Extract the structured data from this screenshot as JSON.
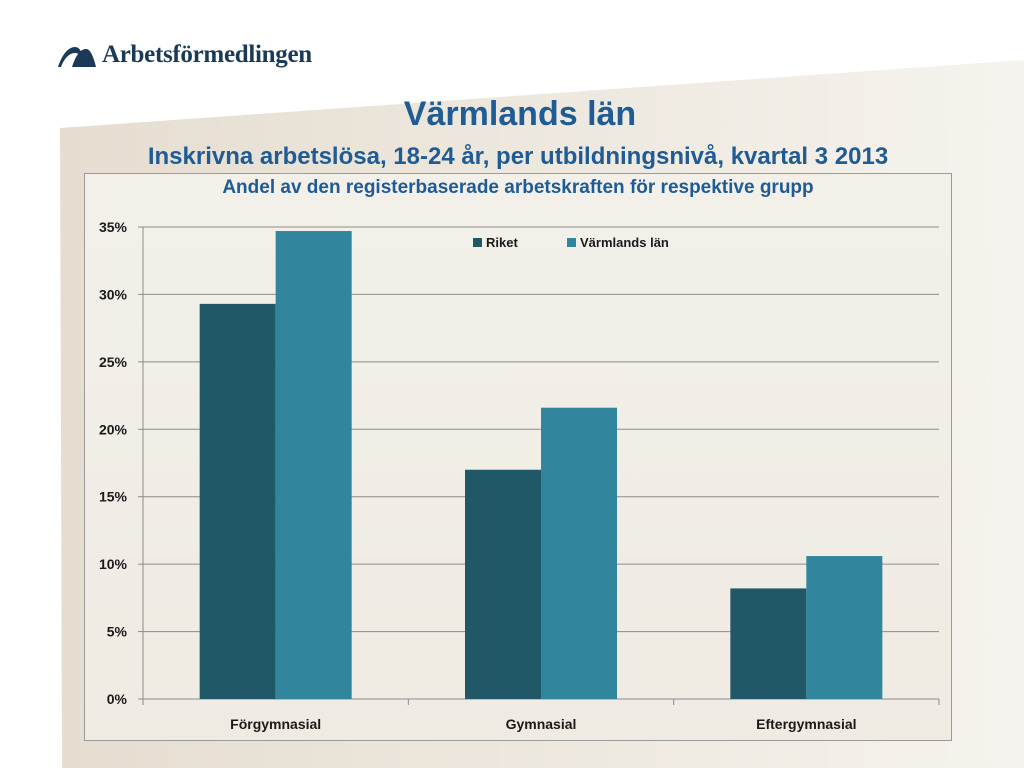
{
  "header": {
    "logo_text": "Arbetsförmedlingen"
  },
  "title": "Värmlands län",
  "subtitle": "Inskrivna arbetslösa, 18-24 år, per utbildningsnivå, kvartal 3 2013",
  "chart_data": {
    "type": "bar",
    "title": "Andel av den registerbaserade arbetskraften för respektive grupp",
    "categories": [
      "Förgymnasial",
      "Gymnasial",
      "Eftergymnasial"
    ],
    "series": [
      {
        "name": "Riket",
        "values": [
          29.3,
          17.0,
          8.2
        ],
        "color": "#215868"
      },
      {
        "name": "Värmlands län",
        "values": [
          34.7,
          21.6,
          10.6
        ],
        "color": "#31859c"
      }
    ],
    "ylim": [
      0,
      35
    ],
    "yticks": [
      0,
      5,
      10,
      15,
      20,
      25,
      30,
      35
    ],
    "ytick_format": "percent",
    "xlabel": "",
    "ylabel": "",
    "grid": true,
    "legend": "top-center"
  }
}
